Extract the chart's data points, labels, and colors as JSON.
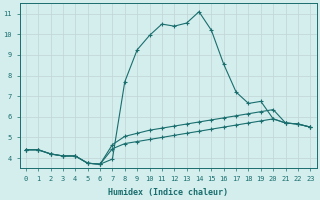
{
  "xlabel": "Humidex (Indice chaleur)",
  "bg_color": "#d4eeee",
  "line_color": "#1a6e6e",
  "grid_color": "#c0d4d4",
  "xlim": [
    -0.5,
    23.5
  ],
  "ylim": [
    3.5,
    11.5
  ],
  "xticks": [
    0,
    1,
    2,
    3,
    4,
    5,
    6,
    7,
    8,
    9,
    10,
    11,
    12,
    13,
    14,
    15,
    16,
    17,
    18,
    19,
    20,
    21,
    22,
    23
  ],
  "yticks": [
    4,
    5,
    6,
    7,
    8,
    9,
    10,
    11
  ],
  "lines": [
    {
      "x": [
        0,
        1,
        2,
        3,
        4,
        5,
        6,
        7,
        8,
        9,
        10,
        11,
        12,
        13,
        14,
        15,
        16,
        17,
        18,
        19,
        20,
        21,
        22,
        23
      ],
      "y": [
        4.4,
        4.4,
        4.2,
        4.1,
        4.1,
        3.75,
        3.7,
        3.95,
        7.7,
        9.25,
        9.95,
        10.5,
        10.4,
        10.55,
        11.1,
        10.2,
        8.55,
        7.2,
        6.65,
        6.75,
        5.9,
        5.7,
        5.65,
        5.5
      ]
    },
    {
      "x": [
        0,
        1,
        2,
        3,
        4,
        5,
        6,
        7,
        8,
        9,
        10,
        11,
        12,
        13,
        14,
        15,
        16,
        17,
        18,
        19,
        20,
        21,
        22,
        23
      ],
      "y": [
        4.4,
        4.4,
        4.2,
        4.1,
        4.1,
        3.75,
        3.7,
        4.65,
        5.05,
        5.2,
        5.35,
        5.45,
        5.55,
        5.65,
        5.75,
        5.85,
        5.95,
        6.05,
        6.15,
        6.25,
        6.35,
        5.7,
        5.65,
        5.5
      ]
    },
    {
      "x": [
        0,
        1,
        2,
        3,
        4,
        5,
        6,
        7,
        8,
        9,
        10,
        11,
        12,
        13,
        14,
        15,
        16,
        17,
        18,
        19,
        20,
        21,
        22,
        23
      ],
      "y": [
        4.4,
        4.4,
        4.2,
        4.1,
        4.1,
        3.75,
        3.7,
        4.45,
        4.7,
        4.8,
        4.9,
        5.0,
        5.1,
        5.2,
        5.3,
        5.4,
        5.5,
        5.6,
        5.7,
        5.8,
        5.9,
        5.7,
        5.65,
        5.5
      ]
    }
  ]
}
